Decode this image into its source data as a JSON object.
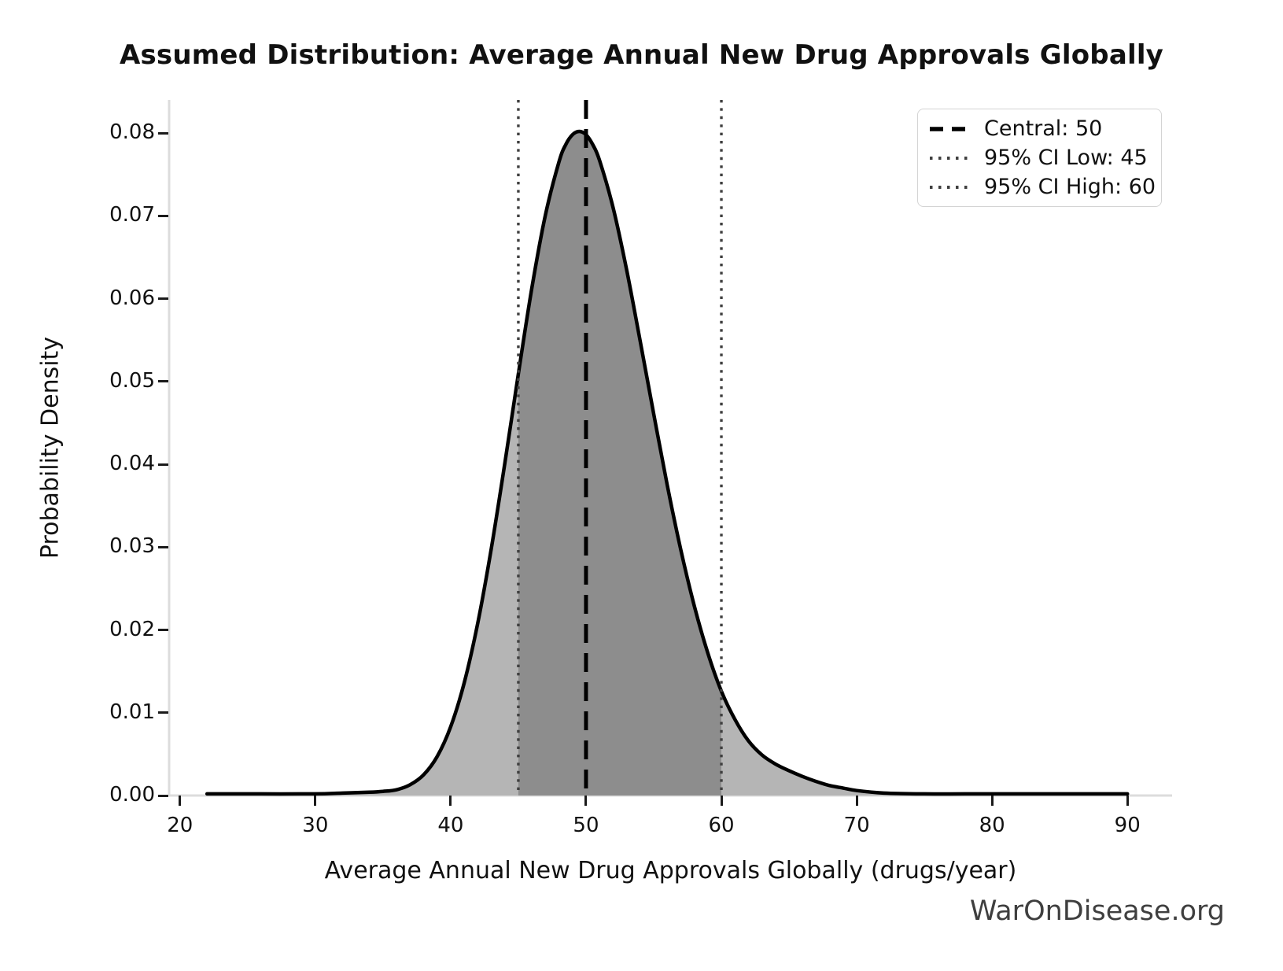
{
  "watermark": "WarOnDisease.org",
  "chart_data": {
    "type": "area",
    "title": "Assumed Distribution: Average Annual New Drug Approvals Globally",
    "xlabel": "Average Annual New Drug Approvals Globally (drugs/year)",
    "ylabel": "Probability Density",
    "xlim": [
      19.2,
      93.3
    ],
    "ylim": [
      0,
      0.084
    ],
    "grid": false,
    "legend_position": "upper right",
    "x_ticks": [
      {
        "v": 20,
        "label": "20"
      },
      {
        "v": 30,
        "label": "30"
      },
      {
        "v": 40,
        "label": "40"
      },
      {
        "v": 50,
        "label": "50"
      },
      {
        "v": 60,
        "label": "60"
      },
      {
        "v": 70,
        "label": "70"
      },
      {
        "v": 80,
        "label": "80"
      },
      {
        "v": 90,
        "label": "90"
      }
    ],
    "y_ticks": [
      {
        "v": 0.0,
        "label": "0.00"
      },
      {
        "v": 0.01,
        "label": "0.01"
      },
      {
        "v": 0.02,
        "label": "0.02"
      },
      {
        "v": 0.03,
        "label": "0.03"
      },
      {
        "v": 0.04,
        "label": "0.04"
      },
      {
        "v": 0.05,
        "label": "0.05"
      },
      {
        "v": 0.06,
        "label": "0.06"
      },
      {
        "v": 0.07,
        "label": "0.07"
      },
      {
        "v": 0.08,
        "label": "0.08"
      }
    ],
    "markers": {
      "central": 50,
      "ci_low": 45,
      "ci_high": 60
    },
    "shaded_ci_region": [
      45,
      60
    ],
    "legend": [
      {
        "label": "Central: 50",
        "style": "dashed",
        "value": 50
      },
      {
        "label": "95% CI Low: 45",
        "style": "dotted",
        "value": 45
      },
      {
        "label": "95% CI High: 60",
        "style": "dotted",
        "value": 60
      }
    ],
    "curve": {
      "x": [
        22,
        26,
        30,
        32,
        34,
        35,
        36,
        37,
        38,
        39,
        40,
        41,
        42,
        43,
        44,
        45,
        46,
        47,
        48,
        48.5,
        49,
        49.5,
        50,
        50.5,
        51,
        52,
        53,
        54,
        55,
        56,
        57,
        58,
        59,
        60,
        61,
        62,
        63,
        64,
        65,
        66,
        67,
        68,
        69,
        70,
        72,
        75,
        78,
        82,
        86,
        90
      ],
      "density": [
        0.0002,
        0.0002,
        0.0002,
        0.0003,
        0.0004,
        0.0005,
        0.0007,
        0.0013,
        0.0025,
        0.0047,
        0.0083,
        0.0136,
        0.0208,
        0.0298,
        0.0401,
        0.0509,
        0.0613,
        0.0701,
        0.0765,
        0.0786,
        0.0798,
        0.0802,
        0.0798,
        0.0786,
        0.0767,
        0.071,
        0.0635,
        0.0549,
        0.0461,
        0.0375,
        0.0297,
        0.0229,
        0.0172,
        0.0126,
        0.0092,
        0.0066,
        0.0049,
        0.0038,
        0.003,
        0.0023,
        0.0017,
        0.0012,
        0.0009,
        0.0006,
        0.0003,
        0.0002,
        0.0002,
        0.0002,
        0.0002,
        0.0002
      ]
    },
    "peak": {
      "x": 49.5,
      "density": 0.08
    }
  },
  "colors": {
    "curve": "#000000",
    "fill_outer": "#b5b5b5",
    "fill_ci": "#8d8d8d",
    "central_line": "#000000",
    "ci_line": "#3f3f3f",
    "spine": "#dcdcdc",
    "tick": "#1a1a1a",
    "text": "#111111",
    "watermark": "#3f3f3f",
    "legend_border": "#d4d4d4"
  }
}
